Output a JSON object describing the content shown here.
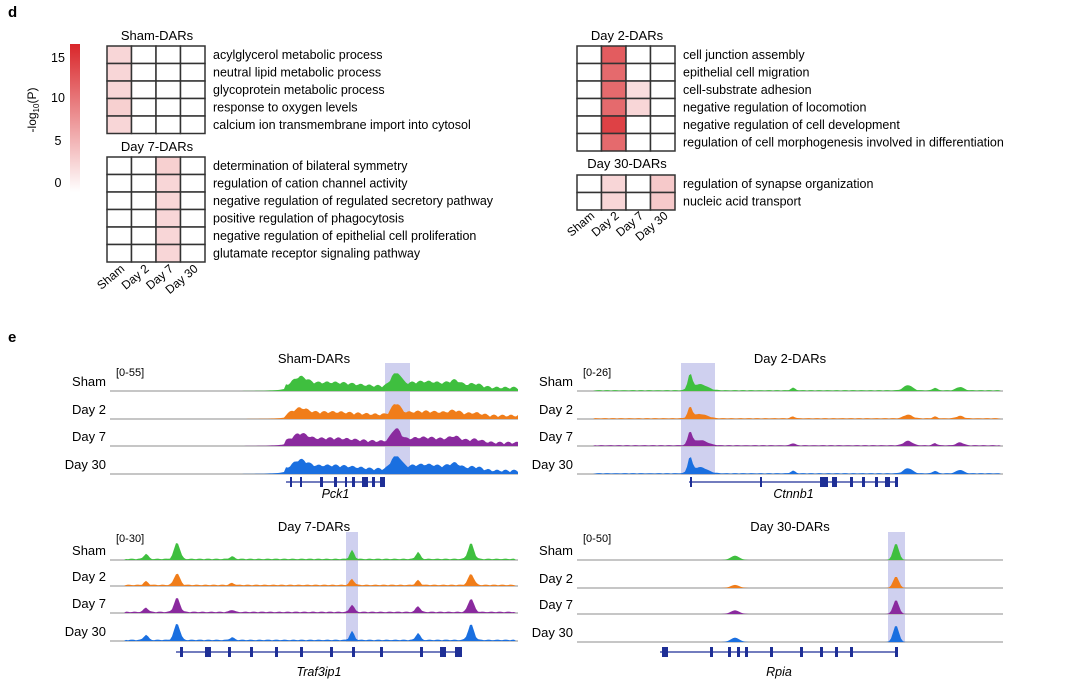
{
  "panel_d": {
    "letter": "d",
    "scale": {
      "label_prefix": "-log",
      "label_sub": "10",
      "label_suffix": "(P)",
      "ticks": [
        "15",
        "10",
        "5",
        "0"
      ],
      "max": 16,
      "colors": {
        "high": "#d9262a",
        "low": "#ffffff"
      }
    },
    "columns": [
      "Sham",
      "Day 2",
      "Day 7",
      "Day 30"
    ],
    "blocks": [
      {
        "title": "Sham-DARs",
        "terms": [
          "acylglycerol metabolic process",
          "neutral lipid metabolic process",
          "glycoprotein metabolic process",
          "response to oxygen levels",
          "calcium ion transmembrane import into cytosol"
        ],
        "values": [
          [
            3,
            0,
            0,
            0
          ],
          [
            3,
            0,
            0,
            0
          ],
          [
            3,
            0,
            0,
            0
          ],
          [
            3.5,
            0,
            0,
            0
          ],
          [
            3,
            0,
            0,
            0
          ]
        ]
      },
      {
        "title": "Day 7-DARs",
        "terms": [
          "determination of bilateral symmetry",
          "regulation of cation channel activity",
          "negative regulation of regulated secretory pathway",
          "positive regulation of phagocytosis",
          "negative regulation of epithelial cell proliferation",
          "glutamate receptor signaling pathway"
        ],
        "values": [
          [
            0,
            0,
            3.5,
            0
          ],
          [
            0,
            0,
            3,
            0
          ],
          [
            0,
            0,
            3,
            0
          ],
          [
            0,
            0,
            3,
            0
          ],
          [
            0,
            0,
            3,
            0
          ],
          [
            0,
            0,
            3,
            0
          ]
        ]
      },
      {
        "title": "Day 2-DARs",
        "terms": [
          "cell junction assembly",
          "epithelial cell migration",
          "cell-substrate adhesion",
          "negative regulation of locomotion",
          "negative regulation of cell development",
          "regulation of cell morphogenesis involved in differentiation"
        ],
        "values": [
          [
            0,
            12,
            0,
            0
          ],
          [
            0,
            11,
            0,
            0
          ],
          [
            0,
            11,
            2.5,
            0
          ],
          [
            0,
            11,
            3,
            0
          ],
          [
            0,
            14,
            0,
            0
          ],
          [
            0,
            11,
            0,
            0
          ]
        ]
      },
      {
        "title": "Day 30-DARs",
        "terms": [
          "regulation of synapse organization",
          "nucleic acid transport"
        ],
        "values": [
          [
            0,
            3,
            0,
            4
          ],
          [
            0,
            3,
            0,
            4
          ]
        ]
      }
    ]
  },
  "panel_e": {
    "letter": "e",
    "tracks": [
      {
        "name": "Sham",
        "color": "#3fbf3f"
      },
      {
        "name": "Day 2",
        "color": "#f07d1a"
      },
      {
        "name": "Day 7",
        "color": "#8a2a9e"
      },
      {
        "name": "Day 30",
        "color": "#1a6fe0"
      }
    ],
    "highlight_color": "#c7c8ec",
    "gene_color": "#1e2f96",
    "loci": [
      {
        "title": "Sham-DARs",
        "range": "[0-55]",
        "gene": "Pck1"
      },
      {
        "title": "Day 2-DARs",
        "range": "[0-26]",
        "gene": "Ctnnb1"
      },
      {
        "title": "Day 7-DARs",
        "range": "[0-30]",
        "gene": "Traf3ip1"
      },
      {
        "title": "Day 30-DARs",
        "range": "[0-50]",
        "gene": "Rpia"
      }
    ]
  }
}
